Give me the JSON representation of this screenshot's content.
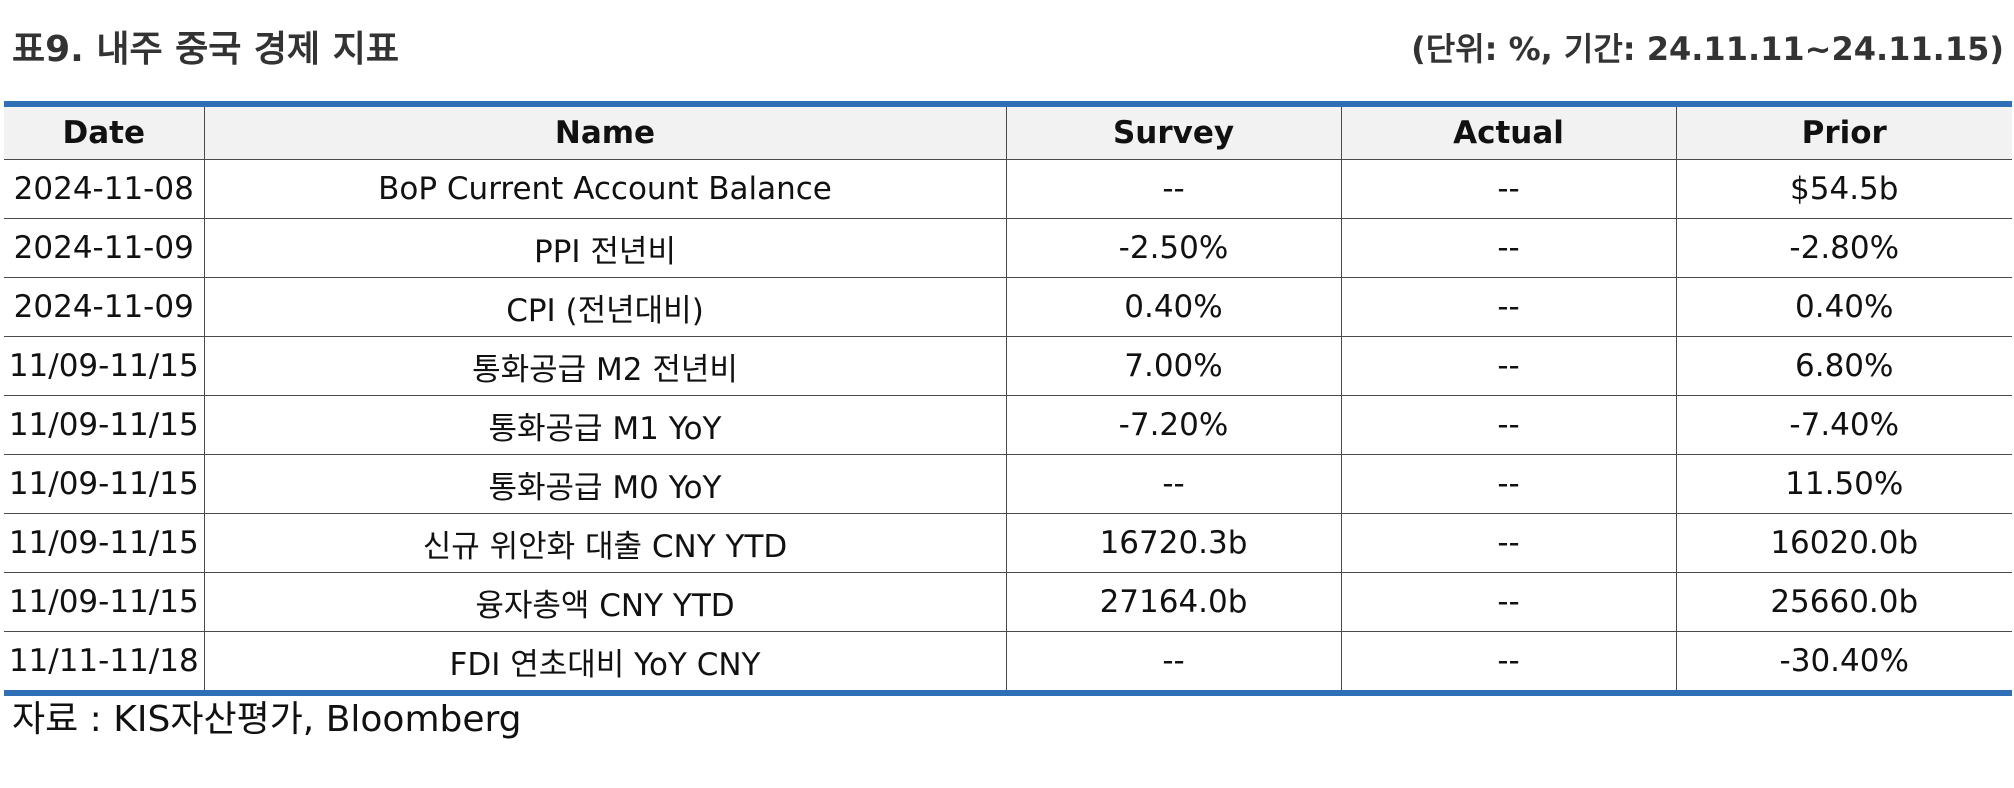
{
  "header": {
    "title": "표9. 내주 중국 경제 지표",
    "unit": "(단위: %, 기간: 24.11.11~24.11.15)"
  },
  "table": {
    "columns": [
      "Date",
      "Name",
      "Survey",
      "Actual",
      "Prior"
    ],
    "rows": [
      [
        "2024-11-08",
        "BoP Current Account Balance",
        "--",
        "--",
        "$54.5b"
      ],
      [
        "2024-11-09",
        "PPI 전년비",
        "-2.50%",
        "--",
        "-2.80%"
      ],
      [
        "2024-11-09",
        "CPI (전년대비)",
        "0.40%",
        "--",
        "0.40%"
      ],
      [
        "11/09-11/15",
        "통화공급 M2 전년비",
        "7.00%",
        "--",
        "6.80%"
      ],
      [
        "11/09-11/15",
        "통화공급 M1 YoY",
        "-7.20%",
        "--",
        "-7.40%"
      ],
      [
        "11/09-11/15",
        "통화공급 M0 YoY",
        "--",
        "--",
        "11.50%"
      ],
      [
        "11/09-11/15",
        "신규 위안화 대출 CNY YTD",
        "16720.3b",
        "--",
        "16020.0b"
      ],
      [
        "11/09-11/15",
        "융자총액 CNY YTD",
        "27164.0b",
        "--",
        "25660.0b"
      ],
      [
        "11/11-11/18",
        "FDI 연초대비 YoY CNY",
        "--",
        "--",
        "-30.40%"
      ]
    ]
  },
  "footer": {
    "source": "자료 : KIS자산평가, Bloomberg"
  },
  "colors": {
    "rule": "#2e6fb5",
    "header_bg": "#f2f2f2"
  }
}
